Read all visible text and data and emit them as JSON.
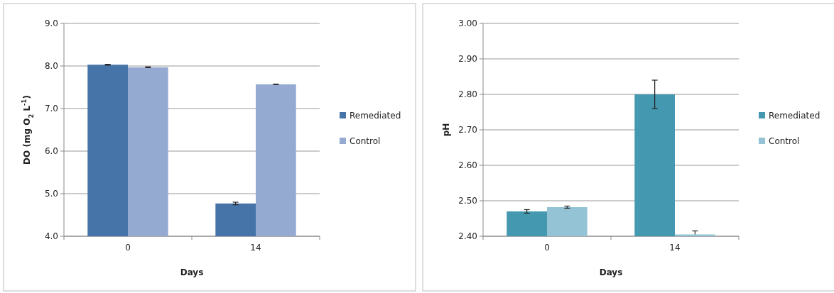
{
  "chart_data": [
    {
      "type": "bar",
      "xlabel": "Days",
      "ylabel": "DO (mg O$_{2}$ L$^{-1}$)",
      "categories": [
        "0",
        "14"
      ],
      "series": [
        {
          "name": "Remediated",
          "color": "#4674a8",
          "values": [
            8.03,
            4.77
          ],
          "errors": [
            0.01,
            0.03
          ]
        },
        {
          "name": "Control",
          "color": "#95aad0",
          "values": [
            7.97,
            7.57
          ],
          "errors": [
            0.01,
            0.005
          ]
        }
      ],
      "ylim": [
        4,
        9
      ],
      "yticks": [
        {
          "value": 4,
          "label": "4.0"
        },
        {
          "value": 5,
          "label": "5.0"
        },
        {
          "value": 6,
          "label": "6.0"
        },
        {
          "value": 7,
          "label": "7.0"
        },
        {
          "value": 8,
          "label": "8.0"
        },
        {
          "value": 9,
          "label": "9.0"
        }
      ],
      "grid": "y",
      "legend": "right"
    },
    {
      "type": "bar",
      "xlabel": "Days",
      "ylabel": "pH",
      "categories": [
        "0",
        "14"
      ],
      "series": [
        {
          "name": "Remediated",
          "color": "#4499b0",
          "values": [
            2.47,
            2.8
          ],
          "errors": [
            0.005,
            0.04
          ]
        },
        {
          "name": "Control",
          "color": "#93c3d4",
          "values": [
            2.482,
            2.405
          ],
          "errors": [
            0.003,
            [
              2.405,
              2.415
            ]
          ]
        }
      ],
      "ylim": [
        2.4,
        3.0
      ],
      "yticks": [
        {
          "value": 2.4,
          "label": "2.40"
        },
        {
          "value": 2.5,
          "label": "2.50"
        },
        {
          "value": 2.6,
          "label": "2.60"
        },
        {
          "value": 2.7,
          "label": "2.70"
        },
        {
          "value": 2.8,
          "label": "2.80"
        },
        {
          "value": 2.9,
          "label": "2.90"
        },
        {
          "value": 3.0,
          "label": "3.00"
        }
      ],
      "grid": "y",
      "legend": "right"
    }
  ]
}
